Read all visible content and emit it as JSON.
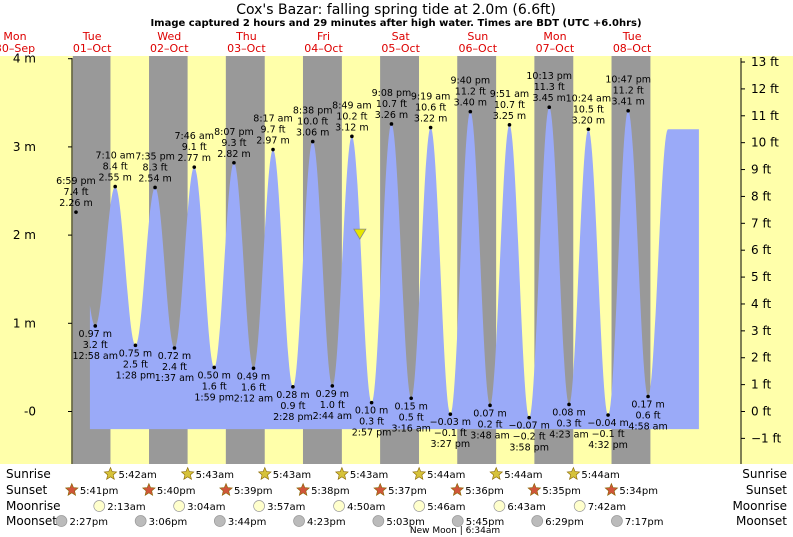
{
  "title": "Cox's Bazar: falling  spring tide at 2.0m (6.6ft)",
  "subtitle": "Image captured 2 hours and 29 minutes after high water. Times are BDT (UTC +6.0hrs)",
  "colors": {
    "day_band": "#ffffaa",
    "night_band": "#999999",
    "tide_fill": "#9aaaf8",
    "day_label": "#dd0000",
    "now_marker": "#e6e600"
  },
  "icons": {
    "sunrise": "star-yellow-icon",
    "sunset": "star-orange-icon",
    "moonrise": "moon-pale-icon",
    "moonset": "moon-grey-icon"
  },
  "day_labels": [
    {
      "day": "Mon",
      "date": "30–Sep"
    },
    {
      "day": "Tue",
      "date": "01–Oct"
    },
    {
      "day": "Wed",
      "date": "02–Oct"
    },
    {
      "day": "Thu",
      "date": "03–Oct"
    },
    {
      "day": "Fri",
      "date": "04–Oct"
    },
    {
      "day": "Sat",
      "date": "05–Oct"
    },
    {
      "day": "Sun",
      "date": "06–Oct"
    },
    {
      "day": "Mon",
      "date": "07–Oct"
    },
    {
      "day": "Tue",
      "date": "08–Oct"
    }
  ],
  "chart_data": {
    "type": "area",
    "title": "Cox's Bazar: falling  spring tide at 2.0m (6.6ft)",
    "x_unit": "hours from 30-Sep 00:00 BDT",
    "xlim": [
      0,
      216
    ],
    "y_left": {
      "unit": "m",
      "ylim": [
        -0.2,
        4.0
      ],
      "ticks": [
        "-0",
        "1 m",
        "2 m",
        "3 m",
        "4 m"
      ],
      "tick_values": [
        0,
        1,
        2,
        3,
        4
      ]
    },
    "y_right": {
      "unit": "ft",
      "ticks": [
        "−1 ft",
        "0 ft",
        "1 ft",
        "2 ft",
        "3 ft",
        "4 ft",
        "5 ft",
        "6 ft",
        "7 ft",
        "8 ft",
        "9 ft",
        "10 ft",
        "11 ft",
        "12 ft",
        "13 ft"
      ],
      "tick_values_ft": [
        -1,
        0,
        1,
        2,
        3,
        4,
        5,
        6,
        7,
        8,
        9,
        10,
        11,
        12,
        13
      ]
    },
    "grid": false,
    "extremes": [
      {
        "type": "high",
        "time": "6:59 pm",
        "ft": "7.4 ft",
        "m": "2.26 m",
        "value_m": 2.26,
        "hour": 18.98
      },
      {
        "type": "low",
        "time": "12:58 am",
        "ft": "3.2 ft",
        "m": "0.97 m",
        "value_m": 0.97,
        "hour": 24.97
      },
      {
        "type": "high",
        "time": "7:10 am",
        "ft": "8.4 ft",
        "m": "2.55 m",
        "value_m": 2.55,
        "hour": 31.17
      },
      {
        "type": "low",
        "time": "1:28 pm",
        "ft": "2.5 ft",
        "m": "0.75 m",
        "value_m": 0.75,
        "hour": 37.47
      },
      {
        "type": "high",
        "time": "7:35 pm",
        "ft": "8.3 ft",
        "m": "2.54 m",
        "value_m": 2.54,
        "hour": 43.58
      },
      {
        "type": "low",
        "time": "1:37 am",
        "ft": "2.4 ft",
        "m": "0.72 m",
        "value_m": 0.72,
        "hour": 49.62
      },
      {
        "type": "high",
        "time": "7:46 am",
        "ft": "9.1 ft",
        "m": "2.77 m",
        "value_m": 2.77,
        "hour": 55.77
      },
      {
        "type": "low",
        "time": "1:59 pm",
        "ft": "1.6 ft",
        "m": "0.50 m",
        "value_m": 0.5,
        "hour": 61.98
      },
      {
        "type": "high",
        "time": "8:07 pm",
        "ft": "9.3 ft",
        "m": "2.82 m",
        "value_m": 2.82,
        "hour": 68.12
      },
      {
        "type": "low",
        "time": "2:12 am",
        "ft": "1.6 ft",
        "m": "0.49 m",
        "value_m": 0.49,
        "hour": 74.2
      },
      {
        "type": "high",
        "time": "8:17 am",
        "ft": "9.7 ft",
        "m": "2.97 m",
        "value_m": 2.97,
        "hour": 80.28
      },
      {
        "type": "low",
        "time": "2:28 pm",
        "ft": "0.9 ft",
        "m": "0.28 m",
        "value_m": 0.28,
        "hour": 86.47
      },
      {
        "type": "high",
        "time": "8:38 pm",
        "ft": "10.0 ft",
        "m": "3.06 m",
        "value_m": 3.06,
        "hour": 92.63
      },
      {
        "type": "low",
        "time": "2:44 am",
        "ft": "1.0 ft",
        "m": "0.29 m",
        "value_m": 0.29,
        "hour": 98.73
      },
      {
        "type": "high",
        "time": "8:49 am",
        "ft": "10.2 ft",
        "m": "3.12 m",
        "value_m": 3.12,
        "hour": 104.82
      },
      {
        "type": "low",
        "time": "2:57 pm",
        "ft": "0.3 ft",
        "m": "0.10 m",
        "value_m": 0.1,
        "hour": 110.95
      },
      {
        "type": "high",
        "time": "9:08 pm",
        "ft": "10.7 ft",
        "m": "3.26 m",
        "value_m": 3.26,
        "hour": 117.13
      },
      {
        "type": "low",
        "time": "3:16 am",
        "ft": "0.5 ft",
        "m": "0.15 m",
        "value_m": 0.15,
        "hour": 123.27
      },
      {
        "type": "high",
        "time": "9:19 am",
        "ft": "10.6 ft",
        "m": "3.22 m",
        "value_m": 3.22,
        "hour": 129.32
      },
      {
        "type": "low",
        "time": "3:27 pm",
        "ft": "−0.1 ft",
        "m": "−0.03 m",
        "value_m": -0.03,
        "hour": 135.45
      },
      {
        "type": "high",
        "time": "9:40 pm",
        "ft": "11.2 ft",
        "m": "3.40 m",
        "value_m": 3.4,
        "hour": 141.67
      },
      {
        "type": "low",
        "time": "3:48 am",
        "ft": "0.2 ft",
        "m": "0.07 m",
        "value_m": 0.07,
        "hour": 147.8
      },
      {
        "type": "high",
        "time": "9:51 am",
        "ft": "10.7 ft",
        "m": "3.25 m",
        "value_m": 3.25,
        "hour": 153.85
      },
      {
        "type": "low",
        "time": "3:58 pm",
        "ft": "−0.2 ft",
        "m": "−0.07 m",
        "value_m": -0.07,
        "hour": 159.97
      },
      {
        "type": "high",
        "time": "10:13 pm",
        "ft": "11.3 ft",
        "m": "3.45 m",
        "value_m": 3.45,
        "hour": 166.22
      },
      {
        "type": "low",
        "time": "4:23 am",
        "ft": "0.3 ft",
        "m": "0.08 m",
        "value_m": 0.08,
        "hour": 172.38
      },
      {
        "type": "high",
        "time": "10:24 am",
        "ft": "10.5 ft",
        "m": "3.20 m",
        "value_m": 3.2,
        "hour": 178.4
      },
      {
        "type": "low",
        "time": "4:32 pm",
        "ft": "−0.1 ft",
        "m": "−0.04 m",
        "value_m": -0.04,
        "hour": 184.53
      },
      {
        "type": "high",
        "time": "10:47 pm",
        "ft": "11.2 ft",
        "m": "3.41 m",
        "value_m": 3.41,
        "hour": 190.78
      },
      {
        "type": "low",
        "time": "4:58 am",
        "ft": "0.6 ft",
        "m": "0.17 m",
        "value_m": 0.17,
        "hour": 196.97
      }
    ],
    "now": {
      "hour": 107.3,
      "value_m": 2.0
    },
    "night_bands_hours": [
      [
        18.0,
        29.7
      ],
      [
        41.7,
        53.7
      ],
      [
        65.6,
        77.7
      ],
      [
        89.6,
        101.7
      ],
      [
        113.6,
        125.7
      ],
      [
        137.6,
        149.7
      ],
      [
        161.6,
        173.7
      ],
      [
        185.6,
        197.7
      ]
    ]
  },
  "sun_moon": {
    "sunrise": {
      "label": "Sunrise",
      "times": [
        "5:42am",
        "5:43am",
        "5:43am",
        "5:43am",
        "5:44am",
        "5:44am",
        "5:44am"
      ],
      "hours": [
        29.7,
        53.72,
        77.72,
        101.72,
        125.73,
        149.73,
        173.73
      ]
    },
    "sunset": {
      "label": "Sunset",
      "times": [
        "5:41pm",
        "5:40pm",
        "5:39pm",
        "5:38pm",
        "5:37pm",
        "5:36pm",
        "5:35pm",
        "5:34pm"
      ],
      "hours": [
        17.68,
        41.67,
        65.65,
        89.63,
        113.62,
        137.6,
        161.58,
        185.57
      ]
    },
    "moonrise": {
      "label": "Moonrise",
      "times": [
        "2:13am",
        "3:04am",
        "3:57am",
        "4:50am",
        "5:46am",
        "6:43am",
        "7:42am"
      ],
      "hours": [
        26.22,
        51.07,
        75.95,
        100.83,
        125.77,
        150.72,
        175.7
      ]
    },
    "moonset": {
      "label": "Moonset",
      "times": [
        "2:27pm",
        "3:06pm",
        "3:44pm",
        "4:23pm",
        "5:03pm",
        "5:45pm",
        "6:29pm",
        "7:17pm"
      ],
      "hours": [
        14.45,
        39.1,
        63.73,
        88.38,
        113.05,
        137.75,
        162.48,
        187.28
      ]
    },
    "new_moon": "New Moon | 6:34am"
  }
}
